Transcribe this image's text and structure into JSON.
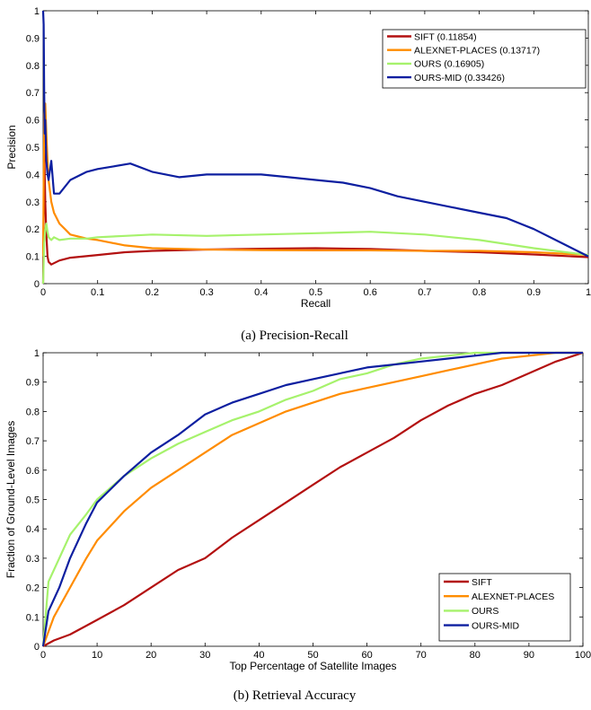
{
  "chart_data": [
    {
      "type": "line",
      "caption": "(a)  Precision-Recall",
      "xlabel": "Recall",
      "ylabel": "Precision",
      "xlim": [
        0,
        1
      ],
      "ylim": [
        0,
        1
      ],
      "xticks": [
        "0",
        "0.1",
        "0.2",
        "0.3",
        "0.4",
        "0.5",
        "0.6",
        "0.7",
        "0.8",
        "0.9",
        "1"
      ],
      "yticks": [
        "0",
        "0.1",
        "0.2",
        "0.3",
        "0.4",
        "0.5",
        "0.6",
        "0.7",
        "0.8",
        "0.9",
        "1"
      ],
      "grid": false,
      "legend_position": "top-right",
      "series": [
        {
          "name": "SIFT (0.11854)",
          "color": "#b31010",
          "x": [
            0,
            0.002,
            0.004,
            0.006,
            0.008,
            0.01,
            0.015,
            0.02,
            0.03,
            0.05,
            0.1,
            0.15,
            0.2,
            0.3,
            0.4,
            0.5,
            0.6,
            0.7,
            0.8,
            0.9,
            1.0
          ],
          "y": [
            0,
            0.5,
            0.3,
            0.18,
            0.1,
            0.08,
            0.07,
            0.075,
            0.085,
            0.095,
            0.105,
            0.115,
            0.12,
            0.125,
            0.128,
            0.13,
            0.127,
            0.12,
            0.115,
            0.107,
            0.097
          ]
        },
        {
          "name": "ALEXNET-PLACES (0.13717)",
          "color": "#ff8c00",
          "x": [
            0,
            0.002,
            0.004,
            0.006,
            0.008,
            0.01,
            0.015,
            0.02,
            0.03,
            0.04,
            0.05,
            0.08,
            0.1,
            0.15,
            0.2,
            0.3,
            0.4,
            0.5,
            0.6,
            0.7,
            0.8,
            0.9,
            1.0
          ],
          "y": [
            0.1,
            0.62,
            0.66,
            0.55,
            0.45,
            0.38,
            0.3,
            0.26,
            0.22,
            0.2,
            0.18,
            0.165,
            0.16,
            0.14,
            0.13,
            0.125,
            0.123,
            0.122,
            0.122,
            0.12,
            0.12,
            0.115,
            0.105
          ]
        },
        {
          "name": "OURS (0.16905)",
          "color": "#a6f26c",
          "x": [
            0,
            0.002,
            0.004,
            0.006,
            0.008,
            0.01,
            0.015,
            0.02,
            0.03,
            0.05,
            0.08,
            0.1,
            0.15,
            0.2,
            0.3,
            0.4,
            0.5,
            0.6,
            0.7,
            0.8,
            0.9,
            1.0
          ],
          "y": [
            0,
            0.15,
            0.2,
            0.22,
            0.19,
            0.17,
            0.16,
            0.17,
            0.16,
            0.165,
            0.165,
            0.17,
            0.175,
            0.18,
            0.175,
            0.18,
            0.185,
            0.19,
            0.18,
            0.16,
            0.13,
            0.105
          ]
        },
        {
          "name": "OURS-MID (0.33426)",
          "color": "#0d1fa0",
          "x": [
            0,
            0.001,
            0.002,
            0.003,
            0.004,
            0.006,
            0.008,
            0.01,
            0.015,
            0.02,
            0.03,
            0.05,
            0.08,
            0.1,
            0.13,
            0.16,
            0.2,
            0.25,
            0.3,
            0.35,
            0.4,
            0.45,
            0.5,
            0.55,
            0.6,
            0.65,
            0.7,
            0.75,
            0.8,
            0.85,
            0.9,
            0.95,
            1.0
          ],
          "y": [
            1.0,
            0.95,
            0.7,
            0.55,
            0.6,
            0.45,
            0.4,
            0.38,
            0.45,
            0.33,
            0.33,
            0.38,
            0.41,
            0.42,
            0.43,
            0.44,
            0.41,
            0.39,
            0.4,
            0.4,
            0.4,
            0.39,
            0.38,
            0.37,
            0.35,
            0.32,
            0.3,
            0.28,
            0.26,
            0.24,
            0.2,
            0.15,
            0.1
          ]
        }
      ]
    },
    {
      "type": "line",
      "caption": "(b)  Retrieval Accuracy",
      "xlabel": "Top Percentage of Satellite Images",
      "ylabel": "Fraction of Ground-Level Images",
      "xlim": [
        0,
        100
      ],
      "ylim": [
        0,
        1
      ],
      "xticks": [
        "0",
        "10",
        "20",
        "30",
        "40",
        "50",
        "60",
        "70",
        "80",
        "90",
        "100"
      ],
      "yticks": [
        "0",
        "0.1",
        "0.2",
        "0.3",
        "0.4",
        "0.5",
        "0.6",
        "0.7",
        "0.8",
        "0.9",
        "1"
      ],
      "grid": false,
      "legend_position": "bottom-right",
      "series": [
        {
          "name": "SIFT",
          "color": "#b31010",
          "x": [
            0,
            2,
            5,
            8,
            10,
            15,
            20,
            25,
            30,
            35,
            40,
            45,
            50,
            55,
            60,
            65,
            70,
            75,
            80,
            85,
            90,
            95,
            100
          ],
          "y": [
            0,
            0.02,
            0.04,
            0.07,
            0.09,
            0.14,
            0.2,
            0.26,
            0.3,
            0.37,
            0.43,
            0.49,
            0.55,
            0.61,
            0.66,
            0.71,
            0.77,
            0.82,
            0.86,
            0.89,
            0.93,
            0.97,
            1.0
          ]
        },
        {
          "name": "ALEXNET-PLACES",
          "color": "#ff8c00",
          "x": [
            0,
            2,
            5,
            8,
            10,
            15,
            20,
            25,
            30,
            35,
            40,
            45,
            50,
            55,
            60,
            65,
            70,
            75,
            80,
            85,
            90,
            95,
            100
          ],
          "y": [
            0,
            0.1,
            0.2,
            0.3,
            0.36,
            0.46,
            0.54,
            0.6,
            0.66,
            0.72,
            0.76,
            0.8,
            0.83,
            0.86,
            0.88,
            0.9,
            0.92,
            0.94,
            0.96,
            0.98,
            0.99,
            1.0,
            1.0
          ]
        },
        {
          "name": "OURS",
          "color": "#a6f26c",
          "x": [
            0,
            1,
            3,
            5,
            8,
            10,
            15,
            20,
            25,
            30,
            35,
            40,
            45,
            50,
            55,
            60,
            65,
            70,
            75,
            80,
            85,
            90,
            100
          ],
          "y": [
            0,
            0.22,
            0.3,
            0.38,
            0.45,
            0.5,
            0.58,
            0.64,
            0.69,
            0.73,
            0.77,
            0.8,
            0.84,
            0.87,
            0.91,
            0.93,
            0.96,
            0.98,
            0.99,
            1.0,
            1.0,
            1.0,
            1.0
          ]
        },
        {
          "name": "OURS-MID",
          "color": "#0d1fa0",
          "x": [
            0,
            1,
            3,
            5,
            8,
            10,
            15,
            20,
            25,
            30,
            35,
            40,
            45,
            50,
            55,
            60,
            65,
            70,
            75,
            80,
            85,
            90,
            100
          ],
          "y": [
            0,
            0.12,
            0.2,
            0.3,
            0.42,
            0.49,
            0.58,
            0.66,
            0.72,
            0.79,
            0.83,
            0.86,
            0.89,
            0.91,
            0.93,
            0.95,
            0.96,
            0.97,
            0.98,
            0.99,
            1.0,
            1.0,
            1.0
          ]
        }
      ]
    }
  ]
}
